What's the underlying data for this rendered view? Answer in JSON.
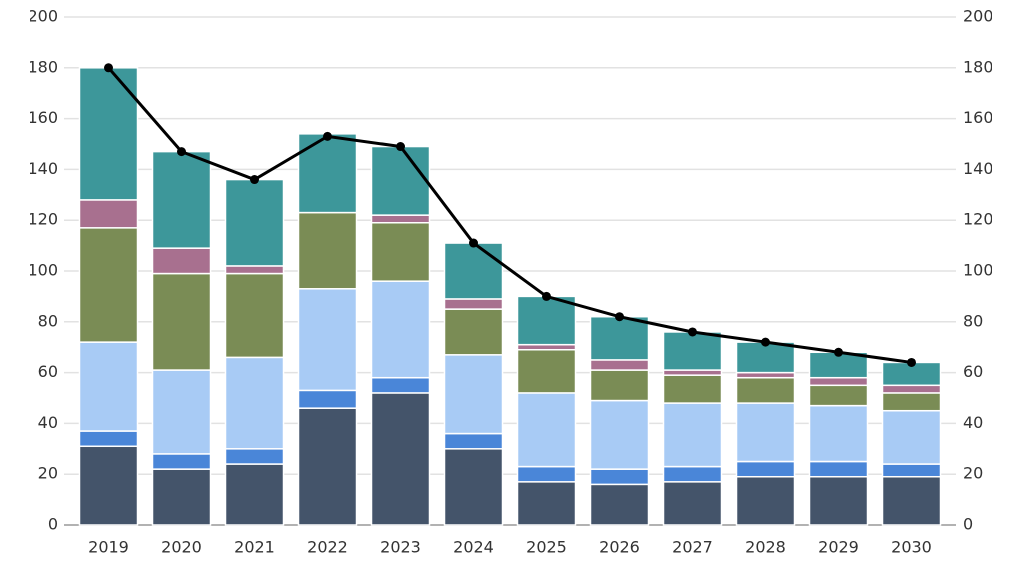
{
  "chart_data": {
    "type": "bar",
    "stacked": true,
    "categories": [
      "2019",
      "2020",
      "2021",
      "2022",
      "2023",
      "2024",
      "2025",
      "2026",
      "2027",
      "2028",
      "2029",
      "2030"
    ],
    "series": [
      {
        "color": "#44546a",
        "values": [
          31,
          22,
          24,
          46,
          52,
          30,
          17,
          16,
          17,
          19,
          19,
          19
        ]
      },
      {
        "color": "#4a86d8",
        "values": [
          6,
          6,
          6,
          7,
          6,
          6,
          6,
          6,
          6,
          6,
          6,
          5
        ]
      },
      {
        "color": "#a8cbf5",
        "values": [
          35,
          33,
          36,
          40,
          38,
          31,
          29,
          27,
          25,
          23,
          22,
          21
        ]
      },
      {
        "color": "#7a8c55",
        "values": [
          45,
          38,
          33,
          30,
          23,
          18,
          17,
          12,
          11,
          10,
          8,
          7
        ]
      },
      {
        "color": "#a8708f",
        "values": [
          11,
          10,
          3,
          0,
          3,
          4,
          2,
          4,
          2,
          2,
          3,
          3
        ]
      },
      {
        "color": "#3d979a",
        "values": [
          52,
          38,
          34,
          31,
          27,
          22,
          19,
          17,
          15,
          12,
          10,
          9
        ]
      },
      {
        "type": "line",
        "axis": "y2",
        "color": "#000000",
        "values": [
          180,
          147,
          136,
          153,
          149,
          111,
          90,
          82,
          76,
          72,
          68,
          64
        ]
      }
    ],
    "ylim": [
      0,
      200
    ],
    "yticks": [
      0,
      20,
      40,
      60,
      80,
      100,
      120,
      140,
      160,
      180,
      200
    ],
    "y2lim": [
      0,
      200
    ],
    "y2ticks": [
      0,
      20,
      40,
      60,
      80,
      100,
      120,
      140,
      160,
      180,
      200
    ],
    "grid": true
  }
}
